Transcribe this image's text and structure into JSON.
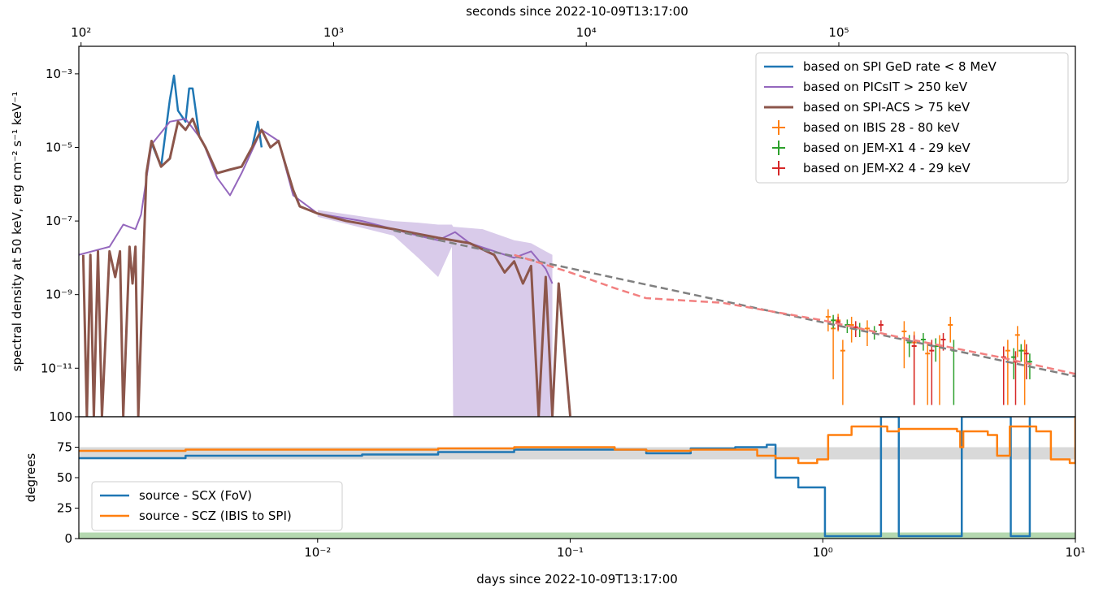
{
  "chart_data": [
    {
      "type": "line",
      "x_scale": "log",
      "y_scale": "log",
      "x2_label": "seconds since 2022-10-09T13:17:00",
      "y_label": "spectral density at 50 keV, erg cm⁻² s⁻¹ keV⁻¹",
      "xlim": [
        0.001134,
        10
      ],
      "x2lim": [
        98,
        864000
      ],
      "x2ticks": [
        {
          "value": 100,
          "label": "10²"
        },
        {
          "value": 1000,
          "label": "10³"
        },
        {
          "value": 10000,
          "label": "10⁴"
        },
        {
          "value": 100000,
          "label": "10⁵"
        }
      ],
      "ylim": [
        4.8e-13,
        0.0056
      ],
      "yticks": [
        {
          "value": 1e-11,
          "label": "10⁻¹¹"
        },
        {
          "value": 1e-09,
          "label": "10⁻⁹"
        },
        {
          "value": 1e-07,
          "label": "10⁻⁷"
        },
        {
          "value": 1e-05,
          "label": "10⁻⁵"
        },
        {
          "value": 0.001,
          "label": "10⁻³"
        }
      ],
      "legend": "upper right",
      "fill_between": {
        "color": "#d9cbea",
        "x": [
          0.01,
          0.02,
          0.025,
          0.03,
          0.034,
          0.0344,
          0.045,
          0.06,
          0.07,
          0.08,
          0.085
        ],
        "upper": [
          2e-07,
          1e-07,
          9e-08,
          8e-08,
          8e-08,
          7e-08,
          6e-08,
          3e-08,
          2.5e-08,
          1.5e-08,
          1.2e-08
        ],
        "lower": [
          1.3e-07,
          4e-08,
          1e-08,
          3e-09,
          2e-08,
          5e-13,
          5e-13,
          5e-13,
          5e-13,
          5e-13,
          5e-13
        ]
      },
      "series": [
        {
          "name": "based on SPI GeD rate < 8 MeV",
          "color": "#1f77b4",
          "style": "solid",
          "width": 2.5,
          "x": [
            0.0021,
            0.0022,
            0.0024,
            0.0026,
            0.0027,
            0.0028,
            0.003,
            0.0031,
            0.0032,
            0.0034,
            0.0036,
            0.004,
            0.005,
            0.0055,
            0.0058,
            0.006
          ],
          "values": [
            2e-06,
            1.3e-05,
            3e-06,
            0.0002,
            0.0009,
            0.0001,
            5e-05,
            0.0004,
            0.0004,
            2e-05,
            1e-05,
            2e-06,
            3e-06,
            1e-05,
            5e-05,
            1e-05
          ]
        },
        {
          "name": "based on PICsIT > 250 keV",
          "color": "#9467bd",
          "style": "solid",
          "width": 2,
          "x": [
            0.00113,
            0.0015,
            0.0017,
            0.0019,
            0.002,
            0.0022,
            0.0026,
            0.003,
            0.0035,
            0.004,
            0.0045,
            0.005,
            0.006,
            0.007,
            0.008,
            0.01,
            0.015,
            0.02,
            0.025,
            0.03,
            0.035,
            0.04,
            0.06,
            0.07,
            0.08,
            0.085
          ],
          "values": [
            1.2e-08,
            2e-08,
            8e-08,
            6e-08,
            1.5e-07,
            1.2e-05,
            5e-05,
            6e-05,
            1.5e-05,
            1.5e-06,
            5e-07,
            2e-06,
            3e-05,
            1.5e-05,
            5e-07,
            1.6e-07,
            1e-07,
            6e-08,
            4e-08,
            3e-08,
            5e-08,
            2.5e-08,
            1e-08,
            1.5e-08,
            5e-09,
            2e-09
          ]
        },
        {
          "name": "based on SPI-ACS > 75 keV",
          "color": "#8c564b",
          "style": "solid",
          "width": 3,
          "x": [
            0.00118,
            0.00122,
            0.00126,
            0.0013,
            0.00135,
            0.0014,
            0.0015,
            0.00158,
            0.00165,
            0.0017,
            0.0018,
            0.00185,
            0.0019,
            0.00195,
            0.00205,
            0.0021,
            0.0022,
            0.0024,
            0.0026,
            0.0028,
            0.003,
            0.0032,
            0.0034,
            0.0036,
            0.004,
            0.0045,
            0.005,
            0.0055,
            0.006,
            0.0065,
            0.007,
            0.0075,
            0.008,
            0.0085,
            0.01,
            0.013,
            0.02,
            0.03,
            0.04,
            0.05,
            0.055,
            0.06,
            0.065,
            0.07,
            0.075,
            0.08,
            0.085,
            0.09,
            0.1
          ],
          "values": [
            1.2e-08,
            5e-13,
            1.2e-08,
            5e-13,
            1.5e-08,
            5e-13,
            1.5e-08,
            3e-09,
            1.5e-08,
            5e-13,
            2e-08,
            2e-09,
            2e-08,
            5e-13,
            2e-08,
            2e-06,
            1.5e-05,
            3e-06,
            5e-06,
            5e-05,
            3e-05,
            6e-05,
            2e-05,
            1e-05,
            2e-06,
            2.5e-06,
            3e-06,
            1e-05,
            3e-05,
            1e-05,
            1.5e-05,
            3e-06,
            7e-07,
            2.5e-07,
            1.6e-07,
            1e-07,
            6e-08,
            3.5e-08,
            2.5e-08,
            1.2e-08,
            4e-09,
            8e-09,
            2e-09,
            6e-09,
            5e-13,
            3e-09,
            5e-13,
            2e-09,
            5e-13
          ]
        },
        {
          "name": "based on IBIS 28 - 80 keV",
          "color": "#ff7f0e",
          "style": "errorbar",
          "x": [
            1.05,
            1.1,
            1.15,
            1.2,
            1.3,
            1.5,
            2.1,
            2.3,
            2.6,
            2.9,
            3.2,
            5.4,
            5.9,
            6.3
          ],
          "values": [
            2.5e-10,
            1.2e-10,
            2e-10,
            3e-11,
            1.5e-10,
            1.2e-10,
            1e-10,
            5e-11,
            2.5e-11,
            4e-11,
            1.5e-10,
            3e-11,
            8e-11,
            3e-11
          ],
          "errors": [
            1.5e-10,
            1.15e-10,
            1e-10,
            2.9e-11,
            1e-10,
            8e-11,
            9e-11,
            4.9e-11,
            2.4e-11,
            3.9e-11,
            1e-10,
            2.9e-11,
            6e-11,
            2.9e-11
          ]
        },
        {
          "name": "based on JEM-X1 4 - 29 keV",
          "color": "#2ca02c",
          "style": "errorbar",
          "x": [
            1.1,
            1.25,
            1.4,
            1.6,
            2.2,
            2.5,
            2.8,
            3.3,
            5.7,
            6.1,
            6.6
          ],
          "values": [
            2e-10,
            1.5e-10,
            1.2e-10,
            1e-10,
            5e-11,
            6e-11,
            4e-11,
            3e-11,
            2e-11,
            3e-11,
            1.5e-11
          ],
          "errors": [
            8e-11,
            6e-11,
            5e-11,
            4e-11,
            3e-11,
            3e-11,
            2.5e-11,
            2.9e-11,
            1.5e-11,
            1.5e-11,
            1e-11
          ]
        },
        {
          "name": "based on JEM-X2 4 - 29 keV",
          "color": "#d62728",
          "style": "errorbar",
          "x": [
            1.15,
            1.35,
            1.7,
            2.3,
            2.7,
            3.0,
            5.2,
            5.8,
            6.4
          ],
          "values": [
            1.8e-10,
            1.3e-10,
            1.5e-10,
            4e-11,
            3e-11,
            6e-11,
            2e-11,
            1.5e-11,
            2.5e-11
          ],
          "errors": [
            7e-11,
            6e-11,
            5e-11,
            3.9e-11,
            2.9e-11,
            3e-11,
            1.9e-11,
            1.4e-11,
            2e-11
          ]
        },
        {
          "color": "#808080",
          "style": "dashed",
          "width": 2.5,
          "x": [
            0.02,
            10
          ],
          "values": [
            5.5e-08,
            6e-12
          ]
        },
        {
          "color": "#f28080",
          "style": "dashed",
          "width": 2.5,
          "x": [
            0.06,
            0.1,
            0.15,
            0.2,
            0.4,
            1,
            2,
            5,
            10
          ],
          "values": [
            1.2e-08,
            4e-09,
            1.5e-09,
            8e-10,
            6e-10,
            2e-10,
            7e-11,
            2e-11,
            7e-12
          ]
        }
      ]
    },
    {
      "type": "line",
      "x_scale": "log",
      "y_scale": "linear",
      "x_label": "days since 2022-10-09T13:17:00",
      "y_label": "degrees",
      "xlim": [
        0.001134,
        10
      ],
      "xticks": [
        {
          "value": 0.01,
          "label": "10⁻²"
        },
        {
          "value": 0.1,
          "label": "10⁻¹"
        },
        {
          "value": 1,
          "label": "10⁰"
        },
        {
          "value": 10,
          "label": "10¹"
        }
      ],
      "ylim": [
        0,
        100
      ],
      "yticks": [
        0,
        25,
        50,
        75,
        100
      ],
      "legend": "lower left",
      "hbands": [
        {
          "color": "#d9d9d9",
          "lower": 65,
          "upper": 75
        },
        {
          "color": "#b5d8b0",
          "lower": 0,
          "upper": 5
        }
      ],
      "series": [
        {
          "name": "source - SCX (FoV)",
          "color": "#1f77b4",
          "style": "step",
          "width": 2.5,
          "x": [
            0.00113,
            0.003,
            0.015,
            0.03,
            0.06,
            0.15,
            0.2,
            0.3,
            0.45,
            0.6,
            0.65,
            0.8,
            0.95,
            1.02,
            1.6,
            1.7,
            1.95,
            2.0,
            3.5,
            3.55,
            5.5,
            5.55,
            6.5,
            6.6
          ],
          "values": [
            66,
            68,
            69,
            71,
            73,
            73,
            70,
            74,
            75,
            77,
            50,
            42,
            42,
            2,
            2,
            100,
            100,
            2,
            2,
            100,
            100,
            2,
            2,
            100
          ]
        },
        {
          "name": "source - SCZ (IBIS to SPI)",
          "color": "#ff7f0e",
          "style": "step",
          "width": 2.5,
          "x": [
            0.00113,
            0.003,
            0.03,
            0.06,
            0.15,
            0.2,
            0.3,
            0.45,
            0.55,
            0.65,
            0.8,
            0.95,
            1.05,
            1.3,
            1.8,
            2.0,
            3.0,
            3.4,
            3.5,
            3.6,
            4.5,
            4.9,
            5.5,
            7,
            8,
            9.5,
            10
          ],
          "values": [
            72,
            73,
            74,
            75,
            73,
            72,
            73,
            73,
            68,
            66,
            62,
            65,
            85,
            92,
            88,
            90,
            90,
            88,
            75,
            88,
            85,
            68,
            92,
            88,
            65,
            62,
            100
          ]
        }
      ]
    }
  ]
}
